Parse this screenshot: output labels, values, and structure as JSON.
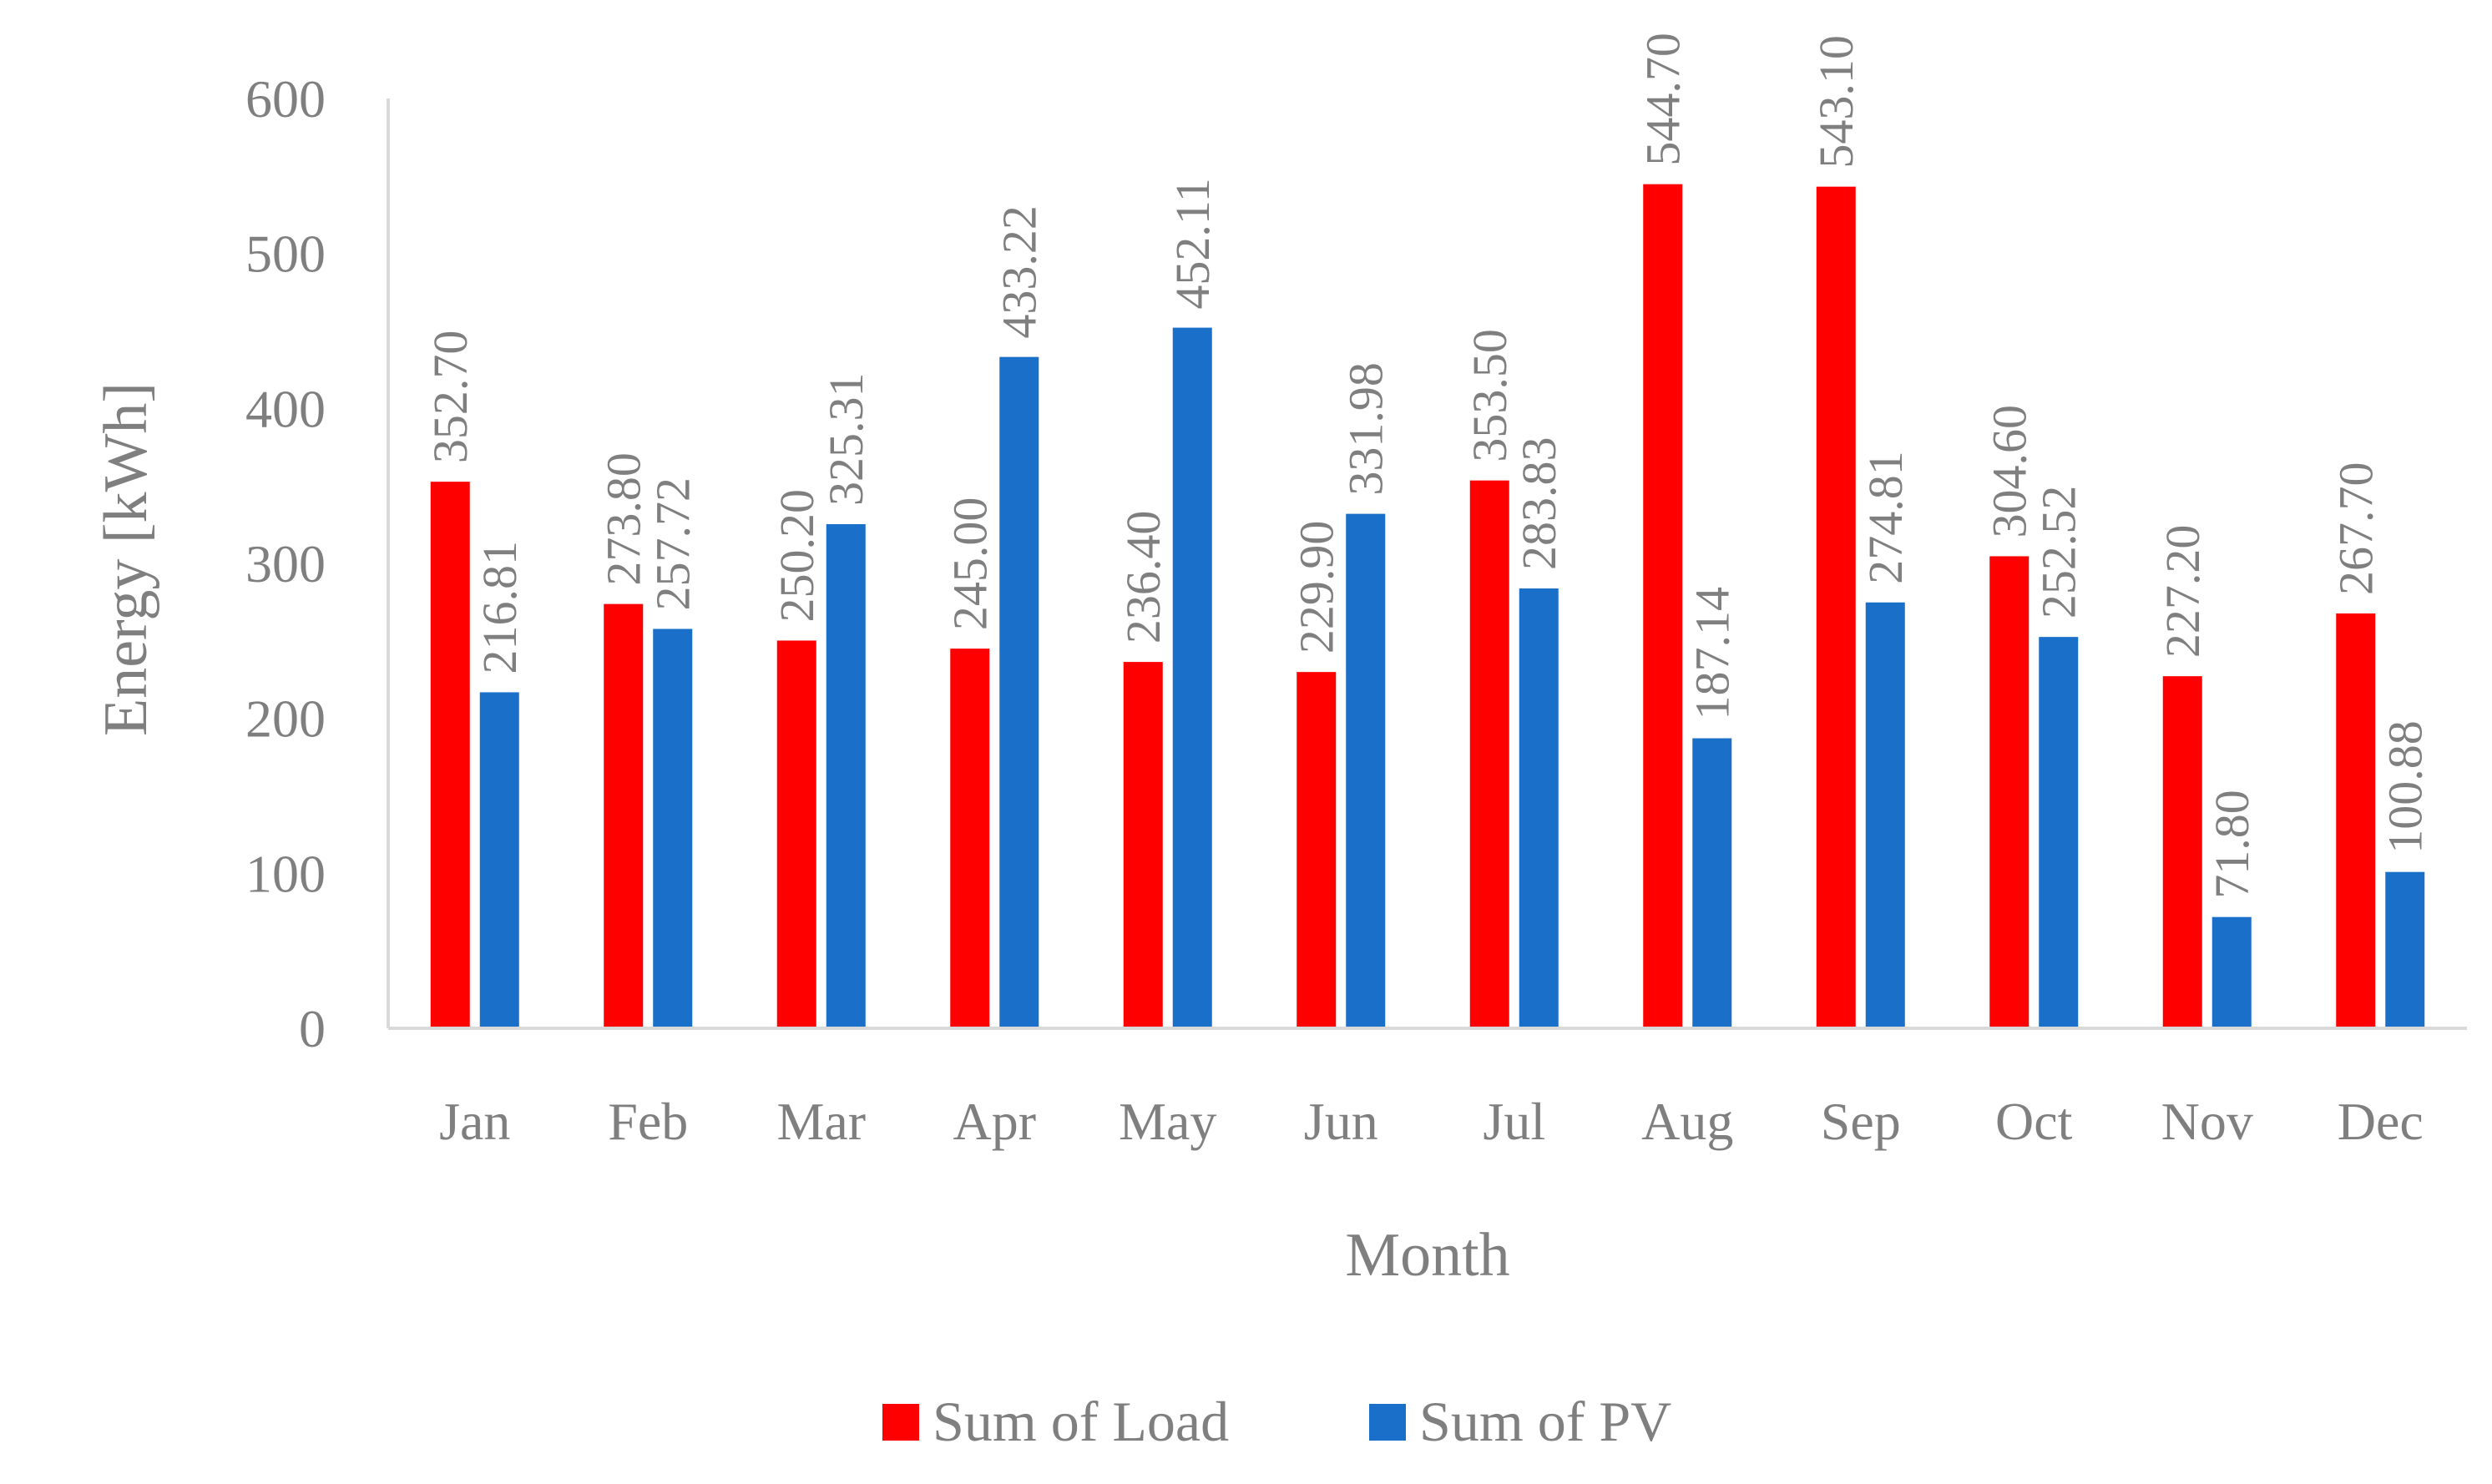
{
  "chart_data": {
    "type": "bar",
    "title": "",
    "xlabel": "Month",
    "ylabel": "Energy [kWh]",
    "ylim": [
      0,
      600
    ],
    "yticks": [
      "0",
      "100",
      "200",
      "300",
      "400",
      "500",
      "600"
    ],
    "grid": false,
    "legend_position": "bottom",
    "categories": [
      "Jan",
      "Feb",
      "Mar",
      "Apr",
      "May",
      "Jun",
      "Jul",
      "Aug",
      "Sep",
      "Oct",
      "Nov",
      "Dec"
    ],
    "series": [
      {
        "name": "Sum of Load",
        "color": "#ff0000",
        "values": [
          352.7,
          273.8,
          250.2,
          245.0,
          236.4,
          229.9,
          353.5,
          544.7,
          543.1,
          304.6,
          227.2,
          267.7
        ],
        "labels": [
          "352.70",
          "273.80",
          "250.20",
          "245.00",
          "236.40",
          "229.90",
          "353.50",
          "544.70",
          "543.10",
          "304.60",
          "227.20",
          "267.70"
        ]
      },
      {
        "name": "Sum of PV",
        "color": "#1a6fc9",
        "values": [
          216.81,
          257.72,
          325.31,
          433.22,
          452.11,
          331.98,
          283.83,
          187.14,
          274.81,
          252.52,
          71.8,
          100.88
        ],
        "labels": [
          "216.81",
          "257.72",
          "325.31",
          "433.22",
          "452.11",
          "331.98",
          "283.83",
          "187.14",
          "274.81",
          "252.52",
          "71.80",
          "100.88"
        ]
      }
    ]
  }
}
